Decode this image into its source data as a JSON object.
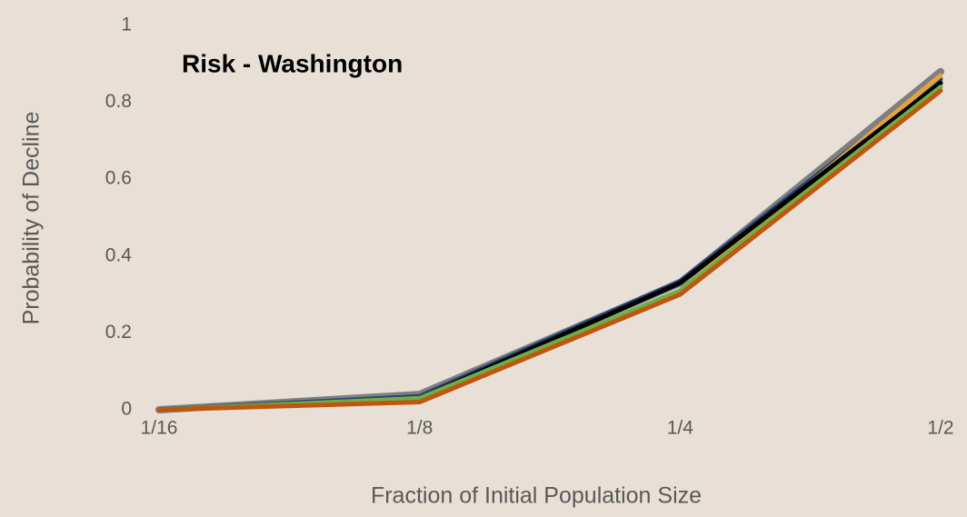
{
  "chart_data": {
    "type": "line",
    "title": "Risk - Washington",
    "x_label": "Fraction of Initial Population Size",
    "y_label": "Probability of Decline",
    "categories": [
      "1/16",
      "1/8",
      "1/4",
      "1/2"
    ],
    "series": [
      {
        "color": "#7f7f7f",
        "values": [
          0,
          0.04,
          0.33,
          0.88
        ]
      },
      {
        "color": "#264478",
        "values": [
          0,
          0.035,
          0.335,
          0.86
        ]
      },
      {
        "color": "#e8a33a",
        "values": [
          0,
          0.025,
          0.31,
          0.87
        ]
      },
      {
        "color": "#000000",
        "values": [
          0,
          0.03,
          0.33,
          0.85
        ]
      },
      {
        "color": "#70ad47",
        "values": [
          0,
          0.03,
          0.31,
          0.84
        ]
      },
      {
        "color": "#c0550f",
        "values": [
          0,
          0.02,
          0.3,
          0.83
        ]
      }
    ],
    "ylim": [
      0,
      1
    ],
    "yticks": [
      0,
      0.2,
      0.4,
      0.6,
      0.8,
      1
    ],
    "grid": false
  }
}
